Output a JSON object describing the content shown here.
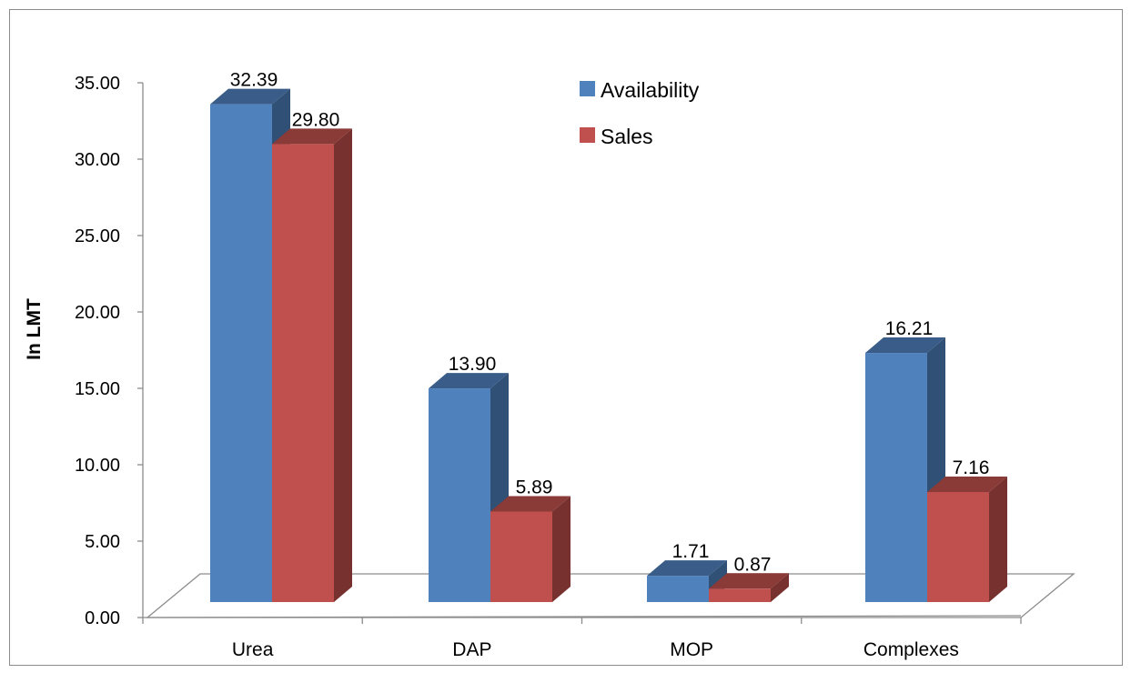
{
  "chart_data": {
    "type": "bar",
    "title": "",
    "xlabel": "",
    "ylabel": "In LMT",
    "ylim": [
      0,
      35
    ],
    "ytick_step": 5,
    "ytick_labels": [
      "0.00",
      "5.00",
      "10.00",
      "15.00",
      "20.00",
      "25.00",
      "30.00",
      "35.00"
    ],
    "grid": false,
    "legend_position": "top-center",
    "categories": [
      "Urea",
      "DAP",
      "MOP",
      "Complexes"
    ],
    "series": [
      {
        "name": "Availability",
        "values": [
          32.39,
          13.9,
          1.71,
          16.21
        ],
        "labels": [
          "32.39",
          "13.90",
          "1.71",
          "16.21"
        ],
        "color": "#4F81BD"
      },
      {
        "name": "Sales",
        "values": [
          29.8,
          5.89,
          0.87,
          7.16
        ],
        "labels": [
          "29.80",
          "5.89",
          "0.87",
          "7.16"
        ],
        "color": "#C0504D"
      }
    ]
  }
}
